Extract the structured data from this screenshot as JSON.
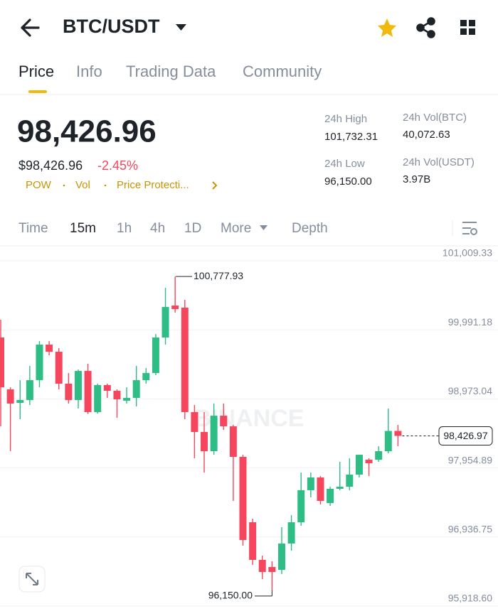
{
  "header": {
    "pair": "BTC/USDT"
  },
  "tabs": [
    "Price",
    "Info",
    "Trading Data",
    "Community"
  ],
  "price": {
    "last": "98,426.96",
    "fiat": "$98,426.96",
    "change": "-2.45%",
    "tags": [
      "POW",
      "Vol",
      "Price Protecti..."
    ]
  },
  "stats": [
    {
      "label": "24h High",
      "value": "101,732.31"
    },
    {
      "label": "24h Vol(BTC)",
      "value": "40,072.63"
    },
    {
      "label": "24h Low",
      "value": "96,150.00"
    },
    {
      "label": "24h Vol(USDT)",
      "value": "3.97B"
    }
  ],
  "intervals": [
    "Time",
    "15m",
    "1h",
    "4h",
    "1D",
    "More",
    "Depth"
  ],
  "chart_data": {
    "type": "candlestick",
    "watermark": "BINANCE",
    "up_color": "#2ebd85",
    "down_color": "#f6465d",
    "open": [
      99878,
      99113,
      98914,
      98956,
      99249,
      99773,
      99668,
      99197,
      98956,
      99385,
      98778,
      99176,
      99092,
      98945,
      98987,
      99249,
      99354,
      99878,
      100349,
      100318,
      98778,
      98485,
      98202,
      98725,
      98568,
      98118,
      97154,
      96599,
      96494,
      96452,
      96840,
      97154,
      97626,
      97814,
      97437,
      97647,
      97678,
      97856,
      98076,
      98076,
      98202,
      98500
    ],
    "high": [
      100140,
      99144,
      99249,
      99459,
      99825,
      99825,
      99721,
      99354,
      99406,
      99490,
      99197,
      99197,
      99113,
      99144,
      99459,
      99427,
      99930,
      100611,
      100777.93,
      100433,
      98883,
      98778,
      98904,
      98904,
      98589,
      98149,
      97207,
      96662,
      96578,
      97081,
      97259,
      97887,
      97887,
      97835,
      97678,
      98045,
      98097,
      98149,
      98097,
      98275,
      98830,
      98589
    ],
    "low": [
      98568,
      98202,
      98673,
      98883,
      99144,
      99616,
      99113,
      98904,
      98830,
      98750,
      98757,
      98987,
      98694,
      98904,
      98862,
      99197,
      99323,
      99773,
      100244,
      98673,
      98097,
      97887,
      98149,
      98516,
      97468,
      96809,
      96526,
      96316,
      96150.0,
      96390,
      96735,
      97102,
      97521,
      97416,
      97395,
      97626,
      97626,
      97814,
      97835,
      98045,
      98170,
      98275
    ],
    "close": [
      99144,
      98904,
      98956,
      99249,
      99773,
      99668,
      99197,
      98956,
      99385,
      98778,
      99176,
      99092,
      98966,
      98987,
      99249,
      99354,
      99878,
      100328,
      100297,
      98778,
      98485,
      98202,
      98725,
      98568,
      98118,
      96892,
      96599,
      96421,
      96421,
      96840,
      97154,
      97626,
      97814,
      97468,
      97647,
      97678,
      97856,
      98149,
      98024,
      98202,
      98500,
      98426.96
    ],
    "ylim": [
      95824,
      101219
    ],
    "yticks": [
      {
        "value": 95918.6,
        "label": "95,918.60"
      },
      {
        "value": 96936.75,
        "label": "96,936.75"
      },
      {
        "value": 97954.89,
        "label": "97,954.89"
      },
      {
        "value": 98973.04,
        "label": "98,973.04"
      },
      {
        "value": 99991.18,
        "label": "99,991.18"
      },
      {
        "value": 101009.33,
        "label": "101,009.33"
      }
    ],
    "grid": true,
    "annotations": [
      {
        "value": 100777.93,
        "label": "100,777.93"
      },
      {
        "value": 96150.0,
        "label": "96,150.00"
      }
    ],
    "current_price": {
      "value": 98426.97,
      "label": "98,426.97"
    }
  }
}
